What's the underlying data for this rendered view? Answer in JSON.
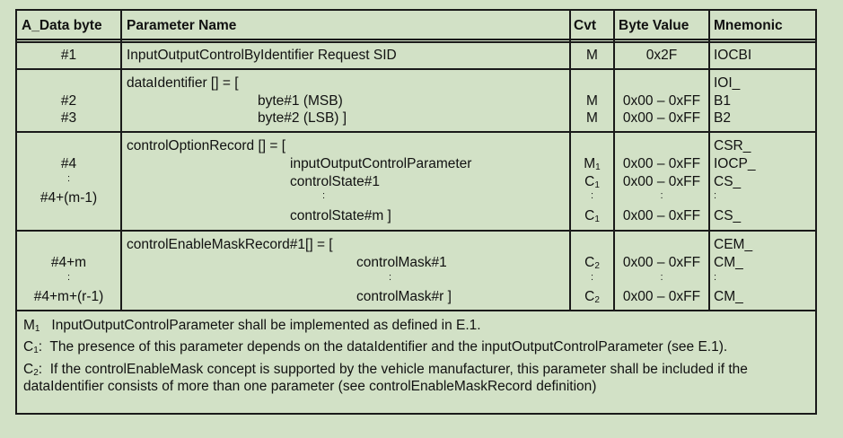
{
  "headers": {
    "data_byte": "A_Data byte",
    "param": "Parameter Name",
    "cvt": "Cvt",
    "byte_value": "Byte Value",
    "mnemonic": "Mnemonic"
  },
  "row1": {
    "byte": "#1",
    "param": "InputOutputControlByIdentifier Request SID",
    "cvt": "M",
    "value": "0x2F",
    "mnem": "IOCBI"
  },
  "row2": {
    "title": "dataIdentifier [] = [",
    "mnem_title": "IOI_",
    "items": [
      {
        "byte": "#2",
        "param": "byte#1 (MSB)",
        "cvt": "M",
        "value": "0x00 – 0xFF",
        "mnem": "B1"
      },
      {
        "byte": "#3",
        "param": "byte#2 (LSB) ]",
        "cvt": "M",
        "value": "0x00 – 0xFF",
        "mnem": "B2"
      }
    ]
  },
  "row3": {
    "title": "controlOptionRecord [] = [",
    "mnem_title": "CSR_",
    "byte_first": "#4",
    "byte_dots": ":",
    "byte_last": "#4+(m-1)",
    "p1": "inputOutputControlParameter",
    "p2": "controlState#1",
    "pdots": ":",
    "p3": "controlState#m ]",
    "cvt1": "M",
    "cvt1_sub": "1",
    "cvt2": "C",
    "cvt2_sub": "1",
    "cvt_dots": ":",
    "cvt3": "C",
    "cvt3_sub": "1",
    "v1": "0x00 – 0xFF",
    "v2": "0x00 – 0xFF",
    "vdots": ":",
    "v3": "0x00 – 0xFF",
    "m1": "IOCP_",
    "m2": "CS_",
    "mdots": ":",
    "m3": "CS_"
  },
  "row4": {
    "title": "controlEnableMaskRecord#1[] = [",
    "mnem_title": "CEM_",
    "byte_first": "#4+m",
    "byte_dots": ":",
    "byte_last": "#4+m+(r-1)",
    "p1": "controlMask#1",
    "pdots": ":",
    "p2": "controlMask#r ]",
    "cvt1": "C",
    "cvt1_sub": "2",
    "cvt_dots": ":",
    "cvt2": "C",
    "cvt2_sub": "2",
    "v1": "0x00 – 0xFF",
    "vdots": ":",
    "v2": "0x00 – 0xFF",
    "m1": "CM_",
    "mdots": ":",
    "m2": "CM_"
  },
  "notes": {
    "n1_key": "M",
    "n1_sub": "1",
    "n1_text": "InputOutputControlParameter shall be implemented as defined in E.1.",
    "n2_key": "C",
    "n2_sub": "1",
    "n2_text": "The presence of this parameter depends on the dataIdentifier and the inputOutputControlParameter (see E.1).",
    "n3_key": "C",
    "n3_sub": "2",
    "n3_text": "If the controlEnableMask concept is supported by the vehicle manufacturer, this parameter shall be included if the dataIdentifier consists of more than one parameter (see controlEnableMaskRecord definition)"
  }
}
